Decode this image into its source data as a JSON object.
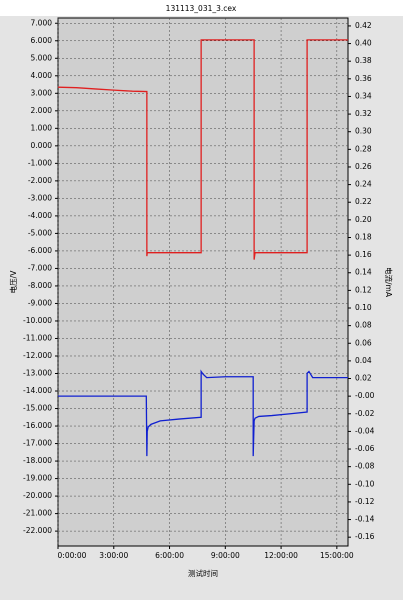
{
  "chart_data": {
    "type": "line",
    "title": "131113_031_3.cex",
    "y_label": "电压/V",
    "y2_label": "电流/mA",
    "x_label": "测试时间",
    "grid": true,
    "xlim": [
      0,
      15.6
    ],
    "xticks": [
      {
        "value": 0,
        "label": "0:00:00"
      },
      {
        "value": 3,
        "label": "3:00:00"
      },
      {
        "value": 6,
        "label": "6:00:00"
      },
      {
        "value": 9,
        "label": "9:00:00"
      },
      {
        "value": 12,
        "label": "12:00:00"
      },
      {
        "value": 15,
        "label": "15:00:00"
      }
    ],
    "ylim": [
      -22.85,
      7.3
    ],
    "yticks": [
      {
        "value": 7,
        "label": "7.000"
      },
      {
        "value": 6,
        "label": "6.000"
      },
      {
        "value": 5,
        "label": "5.000"
      },
      {
        "value": 4,
        "label": "4.000"
      },
      {
        "value": 3,
        "label": "3.000"
      },
      {
        "value": 2,
        "label": "2.000"
      },
      {
        "value": 1,
        "label": "1.000"
      },
      {
        "value": 0,
        "label": "0.000"
      },
      {
        "value": -1,
        "label": "-1.000"
      },
      {
        "value": -2,
        "label": "-2.000"
      },
      {
        "value": -3,
        "label": "-3.000"
      },
      {
        "value": -4,
        "label": "-4.000"
      },
      {
        "value": -5,
        "label": "-5.000"
      },
      {
        "value": -6,
        "label": "-6.000"
      },
      {
        "value": -7,
        "label": "-7.000"
      },
      {
        "value": -8,
        "label": "-8.000"
      },
      {
        "value": -9,
        "label": "-9.000"
      },
      {
        "value": -10,
        "label": "-10.000"
      },
      {
        "value": -11,
        "label": "-11.000"
      },
      {
        "value": -12,
        "label": "-12.000"
      },
      {
        "value": -13,
        "label": "-13.000"
      },
      {
        "value": -14,
        "label": "-14.000"
      },
      {
        "value": -15,
        "label": "-15.000"
      },
      {
        "value": -16,
        "label": "-16.000"
      },
      {
        "value": -17,
        "label": "-17.000"
      },
      {
        "value": -18,
        "label": "-18.000"
      },
      {
        "value": -19,
        "label": "-19.000"
      },
      {
        "value": -20,
        "label": "-20.000"
      },
      {
        "value": -21,
        "label": "-21.000"
      },
      {
        "value": -22,
        "label": "-22.000"
      }
    ],
    "y2lim": [
      -0.17,
      0.429
    ],
    "y2ticks": [
      {
        "value": 0.42,
        "label": "0.42"
      },
      {
        "value": 0.4,
        "label": "0.40"
      },
      {
        "value": 0.38,
        "label": "0.38"
      },
      {
        "value": 0.36,
        "label": "0.36"
      },
      {
        "value": 0.34,
        "label": "0.34"
      },
      {
        "value": 0.32,
        "label": "0.32"
      },
      {
        "value": 0.3,
        "label": "0.30"
      },
      {
        "value": 0.28,
        "label": "0.28"
      },
      {
        "value": 0.26,
        "label": "0.26"
      },
      {
        "value": 0.24,
        "label": "0.24"
      },
      {
        "value": 0.22,
        "label": "0.22"
      },
      {
        "value": 0.2,
        "label": "0.20"
      },
      {
        "value": 0.18,
        "label": "0.18"
      },
      {
        "value": 0.16,
        "label": "0.16"
      },
      {
        "value": 0.14,
        "label": "0.14"
      },
      {
        "value": 0.12,
        "label": "0.12"
      },
      {
        "value": 0.1,
        "label": "0.10"
      },
      {
        "value": 0.08,
        "label": "0.08"
      },
      {
        "value": 0.06,
        "label": "0.06"
      },
      {
        "value": 0.04,
        "label": "0.04"
      },
      {
        "value": 0.02,
        "label": "0.02"
      },
      {
        "value": 0,
        "label": "-0.00"
      },
      {
        "value": -0.02,
        "label": "-0.02"
      },
      {
        "value": -0.04,
        "label": "-0.04"
      },
      {
        "value": -0.06,
        "label": "-0.06"
      },
      {
        "value": -0.08,
        "label": "-0.08"
      },
      {
        "value": -0.1,
        "label": "-0.10"
      },
      {
        "value": -0.12,
        "label": "-0.12"
      },
      {
        "value": -0.14,
        "label": "-0.14"
      },
      {
        "value": -0.16,
        "label": "-0.16"
      }
    ],
    "series": [
      {
        "color": "#e02020",
        "axis": "y",
        "x": [
          0,
          1,
          2,
          3,
          4,
          4.78,
          4.78,
          4.8,
          7.7,
          7.7,
          10.55,
          10.55,
          10.6,
          13.4,
          13.4,
          15.6
        ],
        "values": [
          3.35,
          3.32,
          3.25,
          3.18,
          3.12,
          3.1,
          -6.3,
          -6.1,
          -6.1,
          6.05,
          6.05,
          -6.5,
          -6.1,
          -6.1,
          6.05,
          6.05
        ]
      },
      {
        "color": "#1020d0",
        "axis": "y2",
        "x": [
          0,
          4.75,
          4.78,
          4.8,
          4.85,
          5,
          5.5,
          6.5,
          7.7,
          7.7,
          7.8,
          8,
          9,
          10.5,
          10.5,
          10.55,
          10.6,
          10.8,
          11.5,
          12.5,
          13.4,
          13.4,
          13.5,
          13.7,
          14.5,
          15.6
        ],
        "values": [
          0,
          0,
          -0.068,
          -0.04,
          -0.035,
          -0.032,
          -0.028,
          -0.026,
          -0.024,
          0.028,
          0.025,
          0.021,
          0.022,
          0.022,
          -0.068,
          -0.028,
          -0.025,
          -0.023,
          -0.022,
          -0.02,
          -0.018,
          0.026,
          0.028,
          0.021,
          0.021,
          0.021
        ]
      }
    ]
  }
}
